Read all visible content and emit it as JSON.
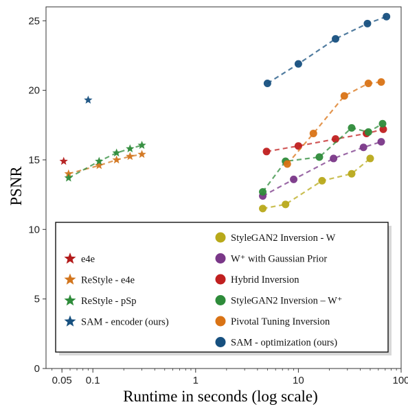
{
  "chart_data": {
    "type": "scatter",
    "title": "",
    "xlabel": "Runtime in seconds (log scale)",
    "ylabel": "PSNR",
    "xscale": "log",
    "xlim": [
      0.035,
      100
    ],
    "ylim": [
      0,
      26
    ],
    "xticks": [
      {
        "value": 0.05,
        "label": "0.05"
      },
      {
        "value": 0.1,
        "label": "0.1"
      },
      {
        "value": 1,
        "label": "1"
      },
      {
        "value": 10,
        "label": "10"
      },
      {
        "value": 100,
        "label": "100"
      }
    ],
    "yticks": [
      {
        "value": 0,
        "label": "0"
      },
      {
        "value": 5,
        "label": "5"
      },
      {
        "value": 10,
        "label": "10"
      },
      {
        "value": 15,
        "label": "15"
      },
      {
        "value": 20,
        "label": "20"
      },
      {
        "value": 25,
        "label": "25"
      }
    ],
    "grid": false,
    "legend_position": "bottom",
    "series": [
      {
        "name": "e4e",
        "marker": "star",
        "color": "#b31b1b",
        "line": false,
        "points": [
          [
            0.052,
            14.9
          ]
        ]
      },
      {
        "name": "ReStyle - e4e",
        "marker": "star",
        "color": "#d2751d",
        "line": true,
        "points": [
          [
            0.058,
            14.0
          ],
          [
            0.115,
            14.6
          ],
          [
            0.17,
            15.0
          ],
          [
            0.23,
            15.25
          ],
          [
            0.3,
            15.4
          ]
        ]
      },
      {
        "name": "ReStyle - pSp",
        "marker": "star",
        "color": "#2e8b3a",
        "line": true,
        "points": [
          [
            0.058,
            13.7
          ],
          [
            0.115,
            14.9
          ],
          [
            0.17,
            15.5
          ],
          [
            0.23,
            15.8
          ],
          [
            0.3,
            16.05
          ]
        ]
      },
      {
        "name": "SAM - encoder (ours)",
        "marker": "star",
        "color": "#17507f",
        "line": false,
        "points": [
          [
            0.09,
            19.3
          ]
        ]
      },
      {
        "name": "StyleGAN2 Inversion - W",
        "marker": "circle",
        "color": "#b8a91a",
        "line": true,
        "points": [
          [
            4.5,
            11.5
          ],
          [
            7.5,
            11.8
          ],
          [
            17,
            13.5
          ],
          [
            33,
            14.0
          ],
          [
            50,
            15.1
          ]
        ]
      },
      {
        "name": "W⁺ with Gaussian Prior",
        "marker": "circle",
        "color": "#7a3788",
        "line": true,
        "points": [
          [
            4.5,
            12.4
          ],
          [
            9,
            13.6
          ],
          [
            22,
            15.1
          ],
          [
            43,
            15.9
          ],
          [
            64,
            16.3
          ]
        ]
      },
      {
        "name": "Hybrid Inversion",
        "marker": "circle",
        "color": "#c02020",
        "line": true,
        "points": [
          [
            4.9,
            15.6
          ],
          [
            10,
            16.0
          ],
          [
            23,
            16.5
          ],
          [
            46,
            16.9
          ],
          [
            67,
            17.2
          ]
        ]
      },
      {
        "name": "StyleGAN2 Inversion – W⁺",
        "marker": "circle",
        "color": "#2e8b3a",
        "line": true,
        "points": [
          [
            4.5,
            12.7
          ],
          [
            7.5,
            14.9
          ],
          [
            16,
            15.2
          ],
          [
            33,
            17.3
          ],
          [
            48,
            17.0
          ],
          [
            66,
            17.6
          ]
        ]
      },
      {
        "name": "Pivotal Tuning Inversion",
        "marker": "circle",
        "color": "#d97315",
        "line": true,
        "points": [
          [
            7.8,
            14.7
          ],
          [
            14,
            16.9
          ],
          [
            28,
            19.6
          ],
          [
            48,
            20.5
          ],
          [
            64,
            20.6
          ]
        ]
      },
      {
        "name": "SAM - optimization (ours)",
        "marker": "circle",
        "color": "#17507f",
        "line": true,
        "points": [
          [
            5,
            20.5
          ],
          [
            10,
            21.9
          ],
          [
            23,
            23.7
          ],
          [
            47,
            24.8
          ],
          [
            72,
            25.3
          ]
        ]
      }
    ],
    "legend": {
      "left_entries": [
        "e4e",
        "ReStyle - e4e",
        "ReStyle - pSp",
        "SAM - encoder (ours)"
      ],
      "right_entries": [
        "StyleGAN2 Inversion - W",
        "W⁺ with Gaussian Prior",
        "Hybrid Inversion",
        "StyleGAN2 Inversion – W⁺",
        "Pivotal Tuning Inversion",
        "SAM - optimization (ours)"
      ]
    }
  }
}
